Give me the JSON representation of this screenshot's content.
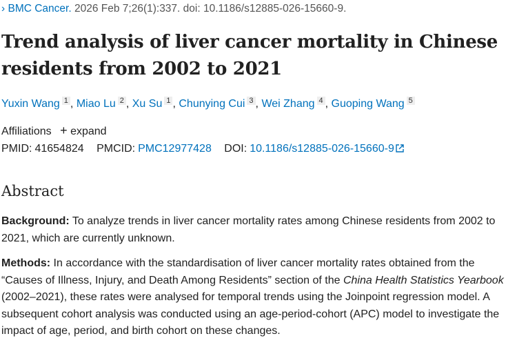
{
  "citation": {
    "journal": "BMC Cancer.",
    "details": "2026 Feb 7;26(1):337. doi: 10.1186/s12885-026-15660-9."
  },
  "title": "Trend analysis of liver cancer mortality in Chinese residents from 2002 to 2021",
  "authors": [
    {
      "name": "Yuxin Wang",
      "sup": "1"
    },
    {
      "name": "Miao Lu",
      "sup": "2"
    },
    {
      "name": "Xu Su",
      "sup": "1"
    },
    {
      "name": "Chunying Cui",
      "sup": "3"
    },
    {
      "name": "Wei Zhang",
      "sup": "4"
    },
    {
      "name": "Guoping Wang",
      "sup": "5"
    }
  ],
  "affiliations": {
    "label": "Affiliations",
    "expand": "expand"
  },
  "ids": {
    "pmid_label": "PMID:",
    "pmid": "41654824",
    "pmcid_label": "PMCID:",
    "pmcid": "PMC12977428",
    "doi_label": "DOI:",
    "doi": "10.1186/s12885-026-15660-9"
  },
  "abstract": {
    "heading": "Abstract",
    "background_label": "Background:",
    "background": " To analyze trends in liver cancer mortality rates among Chinese residents from 2002 to 2021, which are currently unknown.",
    "methods_label": "Methods:",
    "methods_1": " In accordance with the standardisation of liver cancer mortality rates obtained from the “Causes of Illness, Injury, and Death Among Residents” section of the ",
    "methods_italic": "China Health Statistics Yearbook",
    "methods_2": " (2002–2021), these rates were analysed for temporal trends using the Joinpoint regression model. A subsequent cohort analysis was conducted using an age-period-cohort (APC) model to investigate the impact of age, period, and birth cohort on these changes."
  },
  "colors": {
    "link": "#0071bc"
  }
}
